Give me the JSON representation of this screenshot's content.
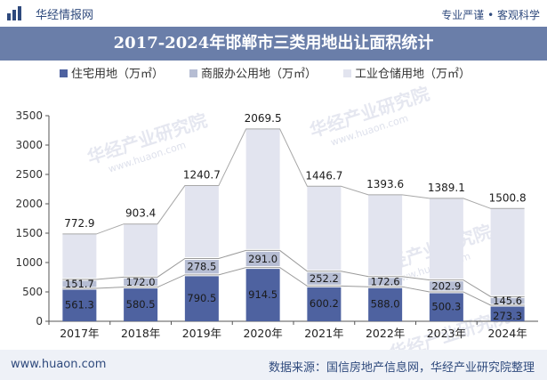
{
  "header": {
    "brand": "华经情报网",
    "tagline": "专业严谨 • 客观科学"
  },
  "title": "2017-2024年邯郸市三类用地出让面积统计",
  "footer": {
    "site": "www.huaon.com",
    "source": "数据来源：国信房地产信息网，华经产业研究院整理"
  },
  "watermark": {
    "text": "华经产业研究院",
    "url": "www.huaon.com"
  },
  "colors": {
    "residential": "#4e62a0",
    "commercial": "#b6bdd3",
    "industrial": "#e2e4ef",
    "banner": "#6a7ea9",
    "total_line": "#a8a8a8"
  },
  "chart_data": {
    "type": "bar",
    "stacked": true,
    "categories": [
      "2017年",
      "2018年",
      "2019年",
      "2020年",
      "2021年",
      "2022年",
      "2023年",
      "2024年"
    ],
    "series": [
      {
        "name": "住宅用地（万㎡）",
        "values": [
          561.3,
          580.5,
          790.5,
          914.5,
          600.2,
          588.0,
          500.3,
          273.3
        ]
      },
      {
        "name": "商服办公用地（万㎡）",
        "values": [
          151.7,
          172.0,
          278.5,
          291.0,
          252.2,
          172.6,
          202.9,
          145.6
        ]
      },
      {
        "name": "工业仓储用地（万㎡）",
        "values": [
          772.9,
          903.4,
          1240.7,
          2069.5,
          1446.7,
          1393.6,
          1389.1,
          1500.8
        ]
      }
    ],
    "ylim": [
      0,
      3500
    ],
    "yticks": [
      0,
      500,
      1000,
      1500,
      2000,
      2500,
      3000,
      3500
    ],
    "grid": false,
    "legend": "top"
  }
}
